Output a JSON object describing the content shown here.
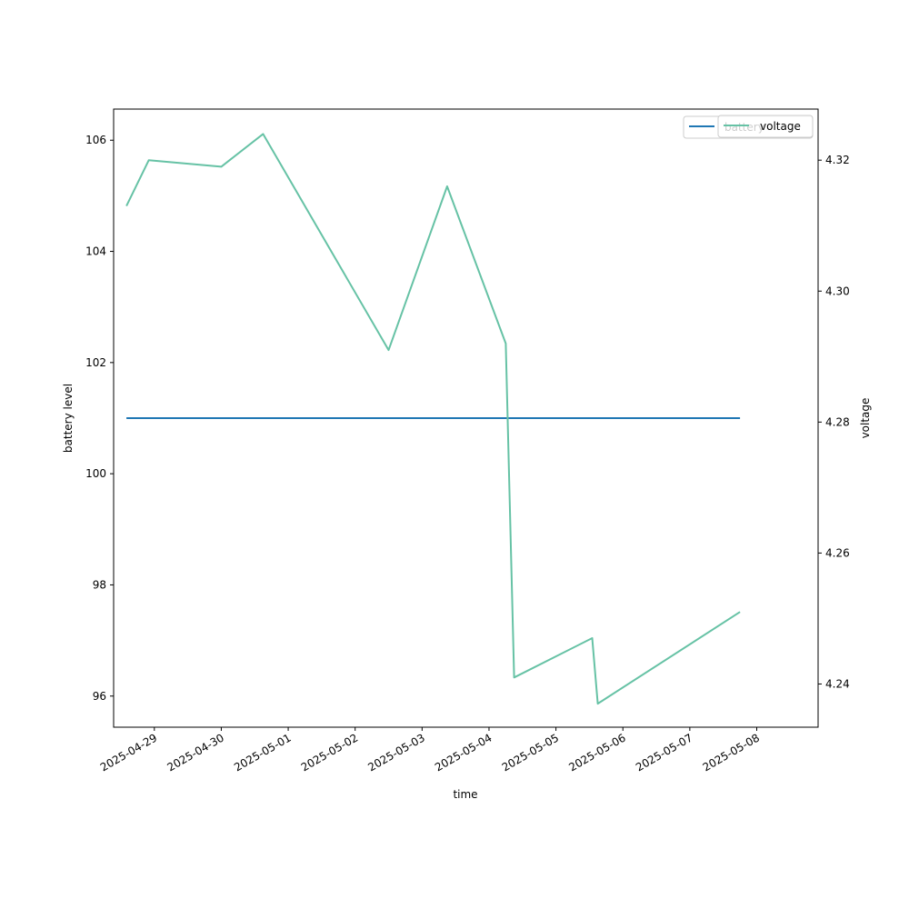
{
  "chart_data": {
    "type": "line",
    "xlabel": "time",
    "ylabel_left": "battery level",
    "ylabel_right": "voltage",
    "x_ticks": [
      "2025-04-29",
      "2025-04-30",
      "2025-05-01",
      "2025-05-02",
      "2025-05-03",
      "2025-05-04",
      "2025-05-05",
      "2025-05-06",
      "2025-05-07",
      "2025-05-08"
    ],
    "xlim": [
      "2025-04-28T09:24",
      "2025-05-08T22:00"
    ],
    "ylim_left": [
      95.44,
      106.56
    ],
    "ylim_right": [
      4.2334,
      4.3278
    ],
    "y_ticks_left": [
      96,
      98,
      100,
      102,
      104,
      106
    ],
    "y_ticks_left_labels": [
      "96",
      "98",
      "100",
      "102",
      "104",
      "106"
    ],
    "y_ticks_right": [
      4.24,
      4.26,
      4.28,
      4.3,
      4.32
    ],
    "y_ticks_right_labels": [
      "4.24",
      "4.26",
      "4.28",
      "4.30",
      "4.32"
    ],
    "grid": false,
    "legend_position": "top-right",
    "series": [
      {
        "name": "battery",
        "axis": "left",
        "color": "#1f77b4",
        "points": [
          {
            "x": "2025-04-28T14:00",
            "y": 101
          },
          {
            "x": "2025-05-07T18:00",
            "y": 101
          }
        ]
      },
      {
        "name": "voltage",
        "axis": "right",
        "color": "#66c2a5",
        "points": [
          {
            "x": "2025-04-28T14:00",
            "y": 4.313
          },
          {
            "x": "2025-04-28T22:00",
            "y": 4.32
          },
          {
            "x": "2025-04-30T00:00",
            "y": 4.319
          },
          {
            "x": "2025-04-30T15:00",
            "y": 4.324
          },
          {
            "x": "2025-05-02T12:00",
            "y": 4.291
          },
          {
            "x": "2025-05-03T09:00",
            "y": 4.316
          },
          {
            "x": "2025-05-04T06:00",
            "y": 4.292
          },
          {
            "x": "2025-05-04T09:00",
            "y": 4.241
          },
          {
            "x": "2025-05-05T13:00",
            "y": 4.247
          },
          {
            "x": "2025-05-05T15:00",
            "y": 4.237
          },
          {
            "x": "2025-05-07T18:00",
            "y": 4.251
          }
        ]
      }
    ]
  }
}
